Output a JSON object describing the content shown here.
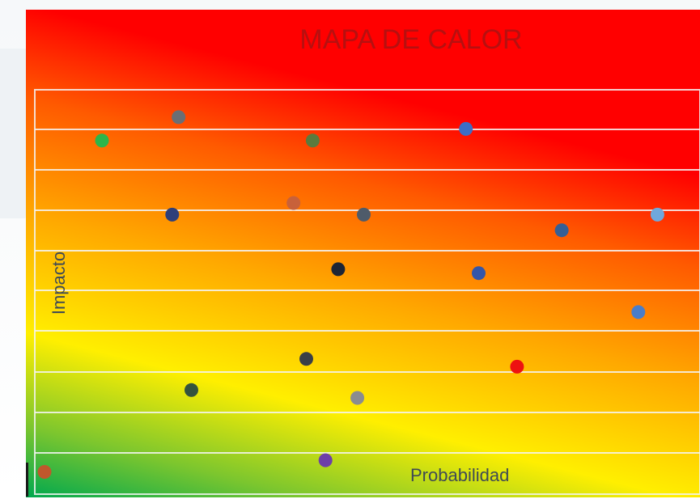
{
  "chart_data": {
    "type": "scatter",
    "title": "MAPA DE CALOR",
    "xlabel": "Probabilidad",
    "ylabel": "Impacto",
    "xlim": [
      0,
      10
    ],
    "ylim": [
      0,
      10
    ],
    "grid": true,
    "background": "heatmap gradient: red (top-right, high impact/probability) → orange → yellow → green (bottom-left)",
    "gradient_colors": [
      "#ff0000",
      "#ff5a00",
      "#ffa000",
      "#ffee00",
      "#00a84f"
    ],
    "points": [
      {
        "x": 0.0,
        "y": 0.3,
        "color": "#c0582c"
      },
      {
        "x": 0.9,
        "y": 8.8,
        "color": "#2db54a"
      },
      {
        "x": 2.1,
        "y": 9.4,
        "color": "#6b6e74"
      },
      {
        "x": 2.0,
        "y": 6.9,
        "color": "#2e3f7a"
      },
      {
        "x": 2.3,
        "y": 2.4,
        "color": "#33533e"
      },
      {
        "x": 3.9,
        "y": 7.2,
        "color": "#c8613a"
      },
      {
        "x": 4.2,
        "y": 8.8,
        "color": "#5b7a3e"
      },
      {
        "x": 4.6,
        "y": 5.5,
        "color": "#1d2535"
      },
      {
        "x": 4.1,
        "y": 3.2,
        "color": "#3a3f47"
      },
      {
        "x": 4.4,
        "y": 0.6,
        "color": "#6d3fa8"
      },
      {
        "x": 5.0,
        "y": 6.9,
        "color": "#4e5b6a"
      },
      {
        "x": 4.9,
        "y": 2.2,
        "color": "#8a8c90"
      },
      {
        "x": 6.6,
        "y": 9.1,
        "color": "#3d6ec5"
      },
      {
        "x": 6.8,
        "y": 5.4,
        "color": "#3556a8"
      },
      {
        "x": 7.4,
        "y": 3.0,
        "color": "#ee1111"
      },
      {
        "x": 8.1,
        "y": 6.5,
        "color": "#365f95"
      },
      {
        "x": 9.3,
        "y": 4.4,
        "color": "#4a7dc8"
      },
      {
        "x": 9.6,
        "y": 6.9,
        "color": "#6fa8dc"
      }
    ]
  }
}
